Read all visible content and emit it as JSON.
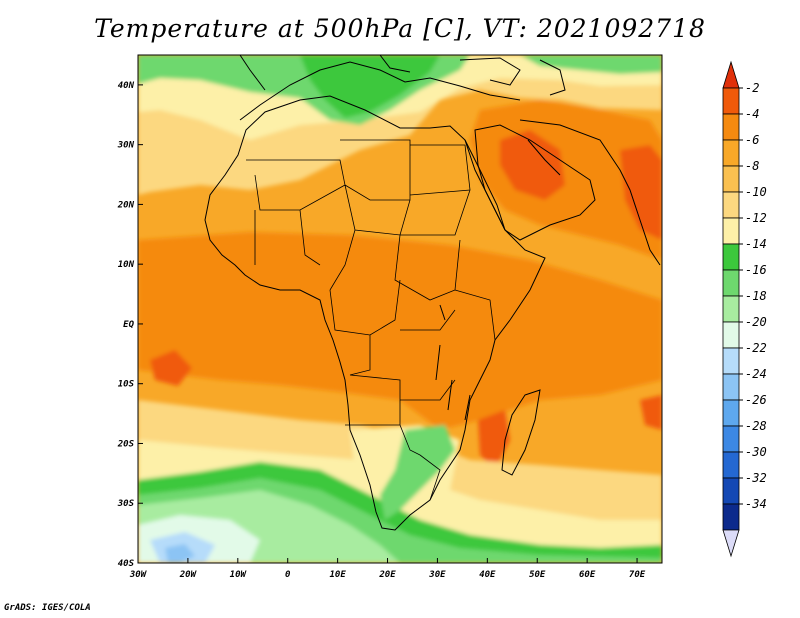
{
  "title": "Temperature at 500hPa [C], VT: 2021092718",
  "credit": "GrADS: IGES/COLA",
  "map": {
    "projection": "lat-lon",
    "lon_range": [
      -30,
      75
    ],
    "lat_range": [
      -40,
      45
    ],
    "lon_ticks": [
      {
        "value": -30,
        "label": "30W"
      },
      {
        "value": -20,
        "label": "20W"
      },
      {
        "value": -10,
        "label": "10W"
      },
      {
        "value": 0,
        "label": "0"
      },
      {
        "value": 10,
        "label": "10E"
      },
      {
        "value": 20,
        "label": "20E"
      },
      {
        "value": 30,
        "label": "30E"
      },
      {
        "value": 40,
        "label": "40E"
      },
      {
        "value": 50,
        "label": "50E"
      },
      {
        "value": 60,
        "label": "60E"
      },
      {
        "value": 70,
        "label": "70E"
      }
    ],
    "lat_ticks": [
      {
        "value": 40,
        "label": "40N"
      },
      {
        "value": 30,
        "label": "30N"
      },
      {
        "value": 20,
        "label": "20N"
      },
      {
        "value": 10,
        "label": "10N"
      },
      {
        "value": 0,
        "label": "EQ"
      },
      {
        "value": -10,
        "label": "10S"
      },
      {
        "value": -20,
        "label": "20S"
      },
      {
        "value": -30,
        "label": "30S"
      },
      {
        "value": -40,
        "label": "40S"
      }
    ]
  },
  "colorbar": {
    "levels": [
      {
        "label": "-2",
        "color": "#f05a0a"
      },
      {
        "label": "-4",
        "color": "#f58a10"
      },
      {
        "label": "-6",
        "color": "#f8a828"
      },
      {
        "label": "-8",
        "color": "#fac050"
      },
      {
        "label": "-10",
        "color": "#fcd880"
      },
      {
        "label": "-12",
        "color": "#fdf0a8"
      },
      {
        "label": "-14",
        "color": "#3cc83c"
      },
      {
        "label": "-16",
        "color": "#6ed86e"
      },
      {
        "label": "-18",
        "color": "#a8eca0"
      },
      {
        "label": "-20",
        "color": "#e2fae8"
      },
      {
        "label": "-22",
        "color": "#b6dcfa"
      },
      {
        "label": "-24",
        "color": "#8cc4f4"
      },
      {
        "label": "-26",
        "color": "#5ea8ee"
      },
      {
        "label": "-28",
        "color": "#3c88e4"
      },
      {
        "label": "-30",
        "color": "#2468d2"
      },
      {
        "label": "-32",
        "color": "#1448b4"
      },
      {
        "label": "-34",
        "color": "#0c2a8c"
      }
    ],
    "top_arrow_color": "#e0300a",
    "bottom_arrow_color": "#dcdcf8"
  }
}
